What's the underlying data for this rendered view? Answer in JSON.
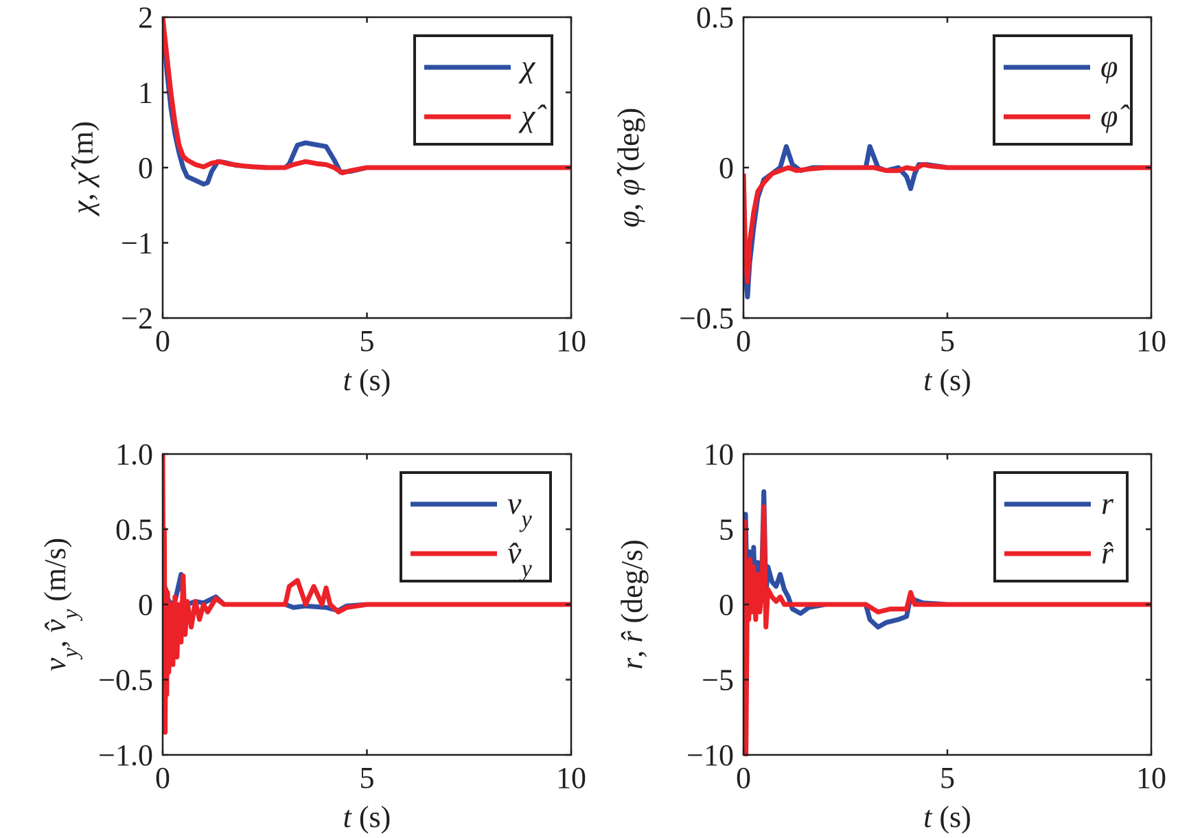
{
  "colors": {
    "actual": "#2e4fa3",
    "estimated": "#ec2229",
    "axis": "#231f20"
  },
  "chart_data": [
    {
      "id": "chi",
      "type": "line",
      "xlabel": "t (s)",
      "ylabel": "χ, χ̂ (m)",
      "xlim": [
        0,
        10
      ],
      "ylim": [
        -2,
        2
      ],
      "xticks": [
        0,
        5,
        10
      ],
      "yticks": [
        -2,
        -1,
        0,
        1,
        2
      ],
      "xtick_labels": [
        "0",
        "5",
        "10"
      ],
      "ytick_labels": [
        "−2",
        "−1",
        "0",
        "1",
        "2"
      ],
      "grid": false,
      "legend": {
        "position": "top-right",
        "entries": [
          "χ",
          "χ̂"
        ]
      },
      "series": [
        {
          "name": "χ",
          "color": "actual",
          "x": [
            0,
            0.1,
            0.2,
            0.3,
            0.4,
            0.5,
            0.6,
            0.8,
            1.0,
            1.1,
            1.2,
            1.35,
            1.5,
            1.8,
            2.2,
            2.6,
            3.0,
            3.1,
            3.3,
            3.5,
            3.8,
            4.0,
            4.2,
            4.35,
            4.6,
            5.0,
            6,
            8,
            10
          ],
          "y": [
            2.0,
            1.3,
            0.8,
            0.45,
            0.2,
            0.0,
            -0.12,
            -0.17,
            -0.22,
            -0.2,
            -0.05,
            0.08,
            0.07,
            0.03,
            0.01,
            0.0,
            0.0,
            0.05,
            0.3,
            0.33,
            0.3,
            0.28,
            0.1,
            -0.06,
            -0.05,
            0.0,
            0.0,
            0.0,
            0.0
          ]
        },
        {
          "name": "χ̂",
          "color": "estimated",
          "x": [
            0,
            0.1,
            0.2,
            0.3,
            0.4,
            0.5,
            0.6,
            0.8,
            1.0,
            1.2,
            1.4,
            1.6,
            2.0,
            2.5,
            3.0,
            3.2,
            3.5,
            3.8,
            4.0,
            4.2,
            4.4,
            4.6,
            5.0,
            6,
            8,
            10
          ],
          "y": [
            2.0,
            1.5,
            1.0,
            0.6,
            0.3,
            0.15,
            0.1,
            0.04,
            0.01,
            0.06,
            0.08,
            0.05,
            0.02,
            0.0,
            0.0,
            0.04,
            0.08,
            0.05,
            0.04,
            0.0,
            -0.07,
            -0.04,
            0.0,
            0.0,
            0.0,
            0.0
          ]
        }
      ]
    },
    {
      "id": "phi",
      "type": "line",
      "xlabel": "t (s)",
      "ylabel": "φ, φ̂ (deg)",
      "xlim": [
        0,
        10
      ],
      "ylim": [
        -0.5,
        0.5
      ],
      "xticks": [
        0,
        5,
        10
      ],
      "yticks": [
        -0.5,
        0,
        0.5
      ],
      "xtick_labels": [
        "0",
        "5",
        "10"
      ],
      "ytick_labels": [
        "−0.5",
        "0",
        "0.5"
      ],
      "grid": false,
      "legend": {
        "position": "top-right",
        "entries": [
          "φ",
          "φ̂"
        ]
      },
      "series": [
        {
          "name": "φ",
          "color": "actual",
          "x": [
            0,
            0.05,
            0.1,
            0.15,
            0.25,
            0.35,
            0.5,
            0.7,
            0.9,
            1.05,
            1.2,
            1.4,
            1.7,
            2.2,
            3.0,
            3.1,
            3.3,
            3.5,
            3.8,
            4.0,
            4.1,
            4.2,
            4.3,
            4.5,
            5.0,
            6,
            8,
            10
          ],
          "y": [
            -0.02,
            -0.35,
            -0.43,
            -0.32,
            -0.2,
            -0.1,
            -0.04,
            -0.02,
            0.0,
            0.07,
            0.01,
            -0.01,
            0.0,
            0.0,
            0.0,
            0.07,
            0.0,
            -0.01,
            0.0,
            -0.03,
            -0.07,
            -0.02,
            0.01,
            0.01,
            0.0,
            0.0,
            0.0,
            0.0
          ]
        },
        {
          "name": "φ̂",
          "color": "estimated",
          "x": [
            0,
            0.05,
            0.1,
            0.15,
            0.25,
            0.35,
            0.5,
            0.7,
            0.9,
            1.1,
            1.3,
            1.6,
            2.0,
            3.0,
            3.2,
            3.5,
            3.8,
            4.0,
            4.2,
            4.4,
            4.6,
            5.0,
            6,
            8,
            10
          ],
          "y": [
            -0.02,
            -0.3,
            -0.38,
            -0.25,
            -0.15,
            -0.08,
            -0.05,
            -0.02,
            -0.01,
            0.0,
            -0.01,
            -0.005,
            0.0,
            0.0,
            0.0,
            -0.01,
            -0.01,
            0.0,
            -0.005,
            0.01,
            0.005,
            0.0,
            0.0,
            0.0,
            0.0
          ]
        }
      ]
    },
    {
      "id": "vy",
      "type": "line",
      "xlabel": "t (s)",
      "ylabel": "v_y, v̂_y (m/s)",
      "xlim": [
        0,
        10
      ],
      "ylim": [
        -1.0,
        1.0
      ],
      "xticks": [
        0,
        5,
        10
      ],
      "yticks": [
        -1.0,
        -0.5,
        0,
        0.5,
        1.0
      ],
      "xtick_labels": [
        "0",
        "5",
        "10"
      ],
      "ytick_labels": [
        "−1.0",
        "−0.5",
        "0",
        "0.5",
        "1.0"
      ],
      "grid": false,
      "legend": {
        "position": "top-right",
        "entries": [
          "v_y",
          "v̂_y"
        ]
      },
      "series": [
        {
          "name": "v_y",
          "color": "actual",
          "x": [
            0,
            0.05,
            0.1,
            0.2,
            0.3,
            0.45,
            0.5,
            0.6,
            0.8,
            1.0,
            1.3,
            1.5,
            2.0,
            3.0,
            3.2,
            3.5,
            4.0,
            4.3,
            4.5,
            5.0,
            6,
            8,
            10
          ],
          "y": [
            0.0,
            0.12,
            0.05,
            0.0,
            0.02,
            0.2,
            0.03,
            0.0,
            0.02,
            0.01,
            0.05,
            0.0,
            0.0,
            0.0,
            -0.02,
            -0.01,
            -0.02,
            -0.04,
            -0.01,
            0.0,
            0.0,
            0.0,
            0.0
          ]
        },
        {
          "name": "v̂_y",
          "color": "estimated",
          "x": [
            0,
            0.02,
            0.04,
            0.06,
            0.08,
            0.1,
            0.12,
            0.15,
            0.2,
            0.25,
            0.3,
            0.35,
            0.4,
            0.45,
            0.5,
            0.55,
            0.6,
            0.7,
            0.8,
            0.9,
            1.0,
            1.1,
            1.3,
            1.5,
            2.0,
            3.0,
            3.1,
            3.3,
            3.5,
            3.7,
            3.9,
            4.0,
            4.1,
            4.3,
            4.5,
            5.0,
            6,
            8,
            10
          ],
          "y": [
            1.0,
            -0.45,
            0.5,
            -0.85,
            0.1,
            -0.6,
            0.08,
            -0.45,
            0.0,
            -0.4,
            0.05,
            -0.35,
            0.0,
            -0.25,
            0.19,
            -0.2,
            0.02,
            -0.15,
            0.02,
            -0.1,
            0.0,
            -0.05,
            0.04,
            0.0,
            0.0,
            0.0,
            0.12,
            0.16,
            0.0,
            0.12,
            0.0,
            0.11,
            0.0,
            -0.05,
            -0.02,
            0.0,
            0.0,
            0.0,
            0.0
          ]
        }
      ]
    },
    {
      "id": "r",
      "type": "line",
      "xlabel": "t (s)",
      "ylabel": "r, r̂ (deg/s)",
      "xlim": [
        0,
        10
      ],
      "ylim": [
        -10,
        10
      ],
      "xticks": [
        0,
        5,
        10
      ],
      "yticks": [
        -10,
        -5,
        0,
        5,
        10
      ],
      "xtick_labels": [
        "0",
        "5",
        "10"
      ],
      "ytick_labels": [
        "−10",
        "−5",
        "0",
        "5",
        "10"
      ],
      "grid": false,
      "legend": {
        "position": "top-right",
        "entries": [
          "r",
          "r̂"
        ]
      },
      "series": [
        {
          "name": "r",
          "color": "actual",
          "x": [
            0,
            0.05,
            0.1,
            0.15,
            0.2,
            0.25,
            0.3,
            0.35,
            0.4,
            0.45,
            0.5,
            0.55,
            0.6,
            0.7,
            0.8,
            0.9,
            1.0,
            1.1,
            1.2,
            1.4,
            1.6,
            2.0,
            3.0,
            3.1,
            3.3,
            3.5,
            3.8,
            4.0,
            4.1,
            4.2,
            4.4,
            5.0,
            6,
            8,
            10
          ],
          "y": [
            0.0,
            6.0,
            -1.0,
            3.5,
            0.0,
            3.8,
            -0.5,
            2.8,
            0.0,
            2.0,
            7.5,
            0.5,
            2.5,
            1.5,
            1.2,
            2.0,
            1.0,
            0.5,
            -0.3,
            -0.6,
            -0.2,
            0.0,
            0.0,
            -1.0,
            -1.5,
            -1.2,
            -1.0,
            -0.8,
            0.5,
            0.3,
            0.1,
            0.0,
            0.0,
            0.0,
            0.0
          ]
        },
        {
          "name": "r̂",
          "color": "estimated",
          "x": [
            0,
            0.03,
            0.06,
            0.1,
            0.13,
            0.16,
            0.2,
            0.25,
            0.3,
            0.35,
            0.4,
            0.45,
            0.5,
            0.55,
            0.6,
            0.7,
            0.8,
            0.9,
            1.0,
            1.2,
            1.5,
            2.0,
            3.0,
            3.3,
            3.6,
            4.0,
            4.1,
            4.2,
            4.4,
            5.0,
            6,
            8,
            10
          ],
          "y": [
            -1.5,
            5.5,
            -10.0,
            2.5,
            -1.0,
            3.0,
            -0.5,
            2.5,
            -1.0,
            2.0,
            -0.5,
            1.0,
            6.5,
            -1.5,
            1.0,
            0.5,
            0.2,
            0.5,
            0.0,
            0.0,
            0.0,
            0.0,
            0.0,
            -0.5,
            -0.3,
            -0.3,
            0.8,
            0.0,
            0.0,
            0.0,
            0.0,
            0.0,
            0.0
          ]
        }
      ]
    }
  ]
}
